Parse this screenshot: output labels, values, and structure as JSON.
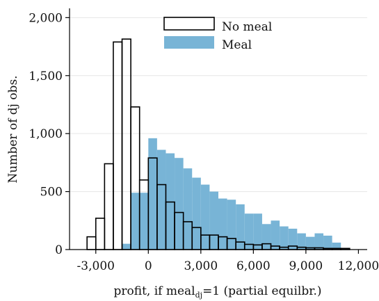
{
  "chart_data": {
    "type": "bar",
    "subtype": "overlaid-histogram",
    "xlabel": "profit, if meal",
    "xlabel_subscript": "dj",
    "xlabel_suffix": "=1 (partial equilbr.)",
    "ylabel": "Number of dj obs.",
    "xlim": [
      -4500,
      12500
    ],
    "ylim": [
      0,
      2080
    ],
    "bin_width": 500,
    "grid": true,
    "legend_position": "top-center",
    "x_ticks": [
      {
        "value": -3000,
        "label": "-3,000"
      },
      {
        "value": 0,
        "label": "0"
      },
      {
        "value": 3000,
        "label": "3,000"
      },
      {
        "value": 6000,
        "label": "6,000"
      },
      {
        "value": 9000,
        "label": "9,000"
      },
      {
        "value": 12000,
        "label": "12,000"
      }
    ],
    "y_ticks": [
      {
        "value": 0,
        "label": "0"
      },
      {
        "value": 500,
        "label": "500"
      },
      {
        "value": 1000,
        "label": "1,000"
      },
      {
        "value": 1500,
        "label": "1,500"
      },
      {
        "value": 2000,
        "label": "2,000"
      }
    ],
    "series": [
      {
        "name": "Meal",
        "style": "filled",
        "color": "#78b4d6",
        "bins": [
          {
            "start": -1500,
            "end": -1000,
            "value": 50
          },
          {
            "start": -1000,
            "end": -500,
            "value": 490
          },
          {
            "start": -500,
            "end": 0,
            "value": 490
          },
          {
            "start": 0,
            "end": 500,
            "value": 960
          },
          {
            "start": 500,
            "end": 1000,
            "value": 860
          },
          {
            "start": 1000,
            "end": 1500,
            "value": 830
          },
          {
            "start": 1500,
            "end": 2000,
            "value": 790
          },
          {
            "start": 2000,
            "end": 2500,
            "value": 700
          },
          {
            "start": 2500,
            "end": 3000,
            "value": 620
          },
          {
            "start": 3000,
            "end": 3500,
            "value": 560
          },
          {
            "start": 3500,
            "end": 4000,
            "value": 500
          },
          {
            "start": 4000,
            "end": 4500,
            "value": 440
          },
          {
            "start": 4500,
            "end": 5000,
            "value": 430
          },
          {
            "start": 5000,
            "end": 5500,
            "value": 390
          },
          {
            "start": 5500,
            "end": 6000,
            "value": 310
          },
          {
            "start": 6000,
            "end": 6500,
            "value": 310
          },
          {
            "start": 6500,
            "end": 7000,
            "value": 220
          },
          {
            "start": 7000,
            "end": 7500,
            "value": 250
          },
          {
            "start": 7500,
            "end": 8000,
            "value": 200
          },
          {
            "start": 8000,
            "end": 8500,
            "value": 180
          },
          {
            "start": 8500,
            "end": 9000,
            "value": 140
          },
          {
            "start": 9000,
            "end": 9500,
            "value": 110
          },
          {
            "start": 9500,
            "end": 10000,
            "value": 140
          },
          {
            "start": 10000,
            "end": 10500,
            "value": 120
          },
          {
            "start": 10500,
            "end": 11000,
            "value": 60
          }
        ]
      },
      {
        "name": "No meal",
        "style": "outline",
        "color": "#000000",
        "bins": [
          {
            "start": -3500,
            "end": -3000,
            "value": 110
          },
          {
            "start": -3000,
            "end": -2500,
            "value": 270
          },
          {
            "start": -2500,
            "end": -2000,
            "value": 740
          },
          {
            "start": -2000,
            "end": -1500,
            "value": 1790
          },
          {
            "start": -1500,
            "end": -1000,
            "value": 1815
          },
          {
            "start": -1000,
            "end": -500,
            "value": 1230
          },
          {
            "start": -500,
            "end": 0,
            "value": 600
          },
          {
            "start": 0,
            "end": 500,
            "value": 790
          },
          {
            "start": 500,
            "end": 1000,
            "value": 560
          },
          {
            "start": 1000,
            "end": 1500,
            "value": 410
          },
          {
            "start": 1500,
            "end": 2000,
            "value": 320
          },
          {
            "start": 2000,
            "end": 2500,
            "value": 240
          },
          {
            "start": 2500,
            "end": 3000,
            "value": 190
          },
          {
            "start": 3000,
            "end": 3500,
            "value": 125
          },
          {
            "start": 3500,
            "end": 4000,
            "value": 125
          },
          {
            "start": 4000,
            "end": 4500,
            "value": 110
          },
          {
            "start": 4500,
            "end": 5000,
            "value": 95
          },
          {
            "start": 5000,
            "end": 5500,
            "value": 65
          },
          {
            "start": 5500,
            "end": 6000,
            "value": 45
          },
          {
            "start": 6000,
            "end": 6500,
            "value": 40
          },
          {
            "start": 6500,
            "end": 7000,
            "value": 50
          },
          {
            "start": 7000,
            "end": 7500,
            "value": 30
          },
          {
            "start": 7500,
            "end": 8000,
            "value": 20
          },
          {
            "start": 8000,
            "end": 8500,
            "value": 30
          },
          {
            "start": 8500,
            "end": 9000,
            "value": 20
          },
          {
            "start": 9000,
            "end": 9500,
            "value": 15
          },
          {
            "start": 9500,
            "end": 10000,
            "value": 15
          },
          {
            "start": 10000,
            "end": 10500,
            "value": 10
          },
          {
            "start": 10500,
            "end": 11000,
            "value": 10
          },
          {
            "start": 11000,
            "end": 11500,
            "value": 10
          }
        ]
      }
    ]
  }
}
